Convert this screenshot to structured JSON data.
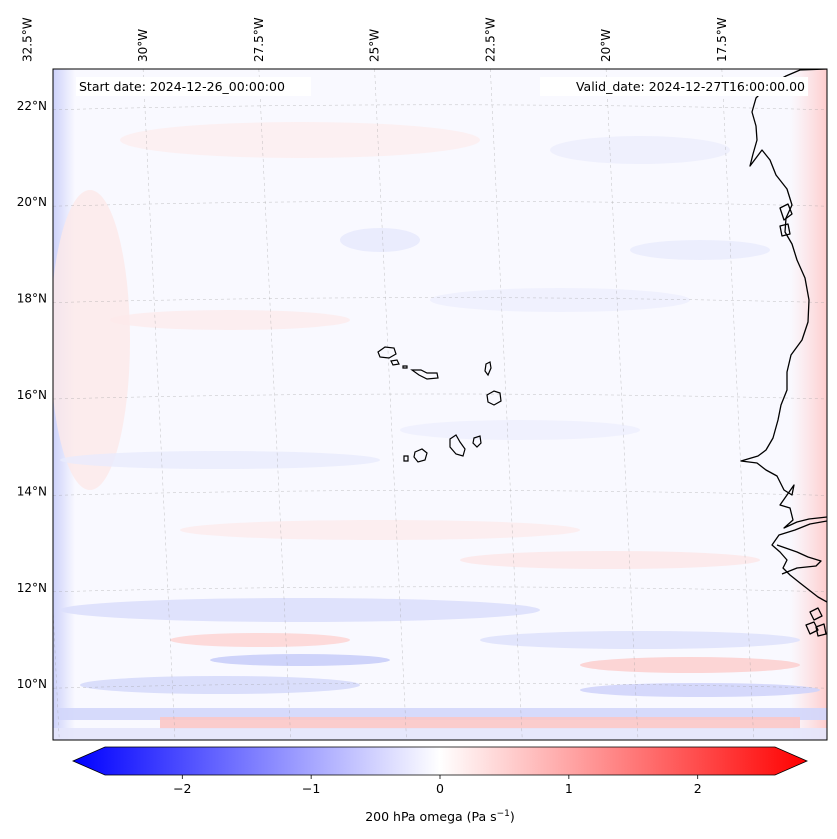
{
  "map": {
    "start_date_label": "Start date: 2024-12-26_00:00:00",
    "valid_date_label": "Valid_date: 2024-12-27T16:00:00.00",
    "lon_ticks": [
      {
        "value": -32.5,
        "label": "32.5°W"
      },
      {
        "value": -30.0,
        "label": "30°W"
      },
      {
        "value": -27.5,
        "label": "27.5°W"
      },
      {
        "value": -25.0,
        "label": "25°W"
      },
      {
        "value": -22.5,
        "label": "22.5°W"
      },
      {
        "value": -20.0,
        "label": "20°W"
      },
      {
        "value": -17.5,
        "label": "17.5°W"
      }
    ],
    "lat_ticks": [
      {
        "value": 22,
        "label": "22°N"
      },
      {
        "value": 20,
        "label": "20°N"
      },
      {
        "value": 18,
        "label": "18°N"
      },
      {
        "value": 16,
        "label": "16°N"
      },
      {
        "value": 14,
        "label": "14°N"
      },
      {
        "value": 12,
        "label": "12°N"
      },
      {
        "value": 10,
        "label": "10°N"
      }
    ],
    "features": [
      "Cape Verde islands",
      "West African coastline"
    ]
  },
  "colorbar": {
    "label_main": "200 hPa omega (Pa s",
    "label_sup": "−1",
    "label_close": ")",
    "range": [
      -2.6,
      2.6
    ],
    "ticks": [
      {
        "value": -2,
        "label": "−2"
      },
      {
        "value": -1,
        "label": "−1"
      },
      {
        "value": 0,
        "label": "0"
      },
      {
        "value": 1,
        "label": "1"
      },
      {
        "value": 2,
        "label": "2"
      }
    ],
    "colors": {
      "negative": "#0000ff",
      "zero": "#ffffff",
      "positive": "#ff0000"
    }
  }
}
